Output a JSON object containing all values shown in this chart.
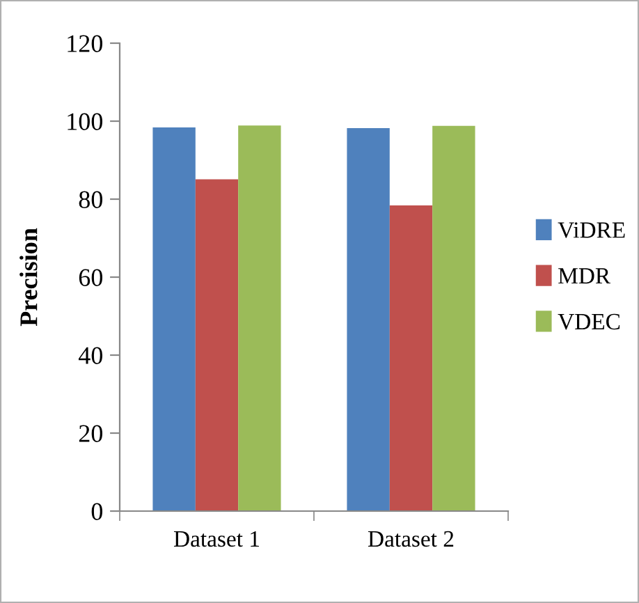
{
  "chart_data": {
    "type": "bar",
    "ylabel": "Precision",
    "categories": [
      "Dataset 1",
      "Dataset 2"
    ],
    "series": [
      {
        "name": "ViDRE",
        "color": "#4f81bd",
        "values": [
          98.4,
          98.2
        ]
      },
      {
        "name": "MDR",
        "color": "#c0504d",
        "values": [
          85.1,
          78.4
        ]
      },
      {
        "name": "VDEC",
        "color": "#9bbb59",
        "values": [
          98.9,
          98.8
        ]
      }
    ],
    "ylim": [
      0,
      120
    ],
    "yticks": [
      0,
      20,
      40,
      60,
      80,
      100,
      120
    ],
    "grid": false,
    "legend": "right"
  }
}
